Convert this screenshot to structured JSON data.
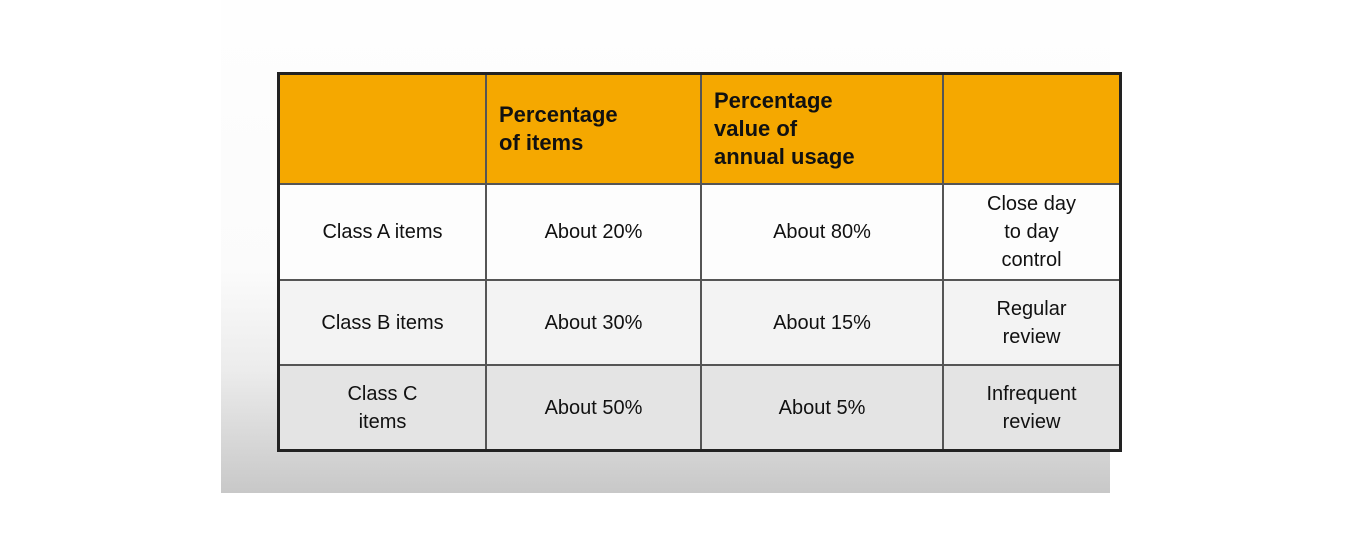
{
  "table": {
    "header": [
      "Percentage of items",
      "Percentage value of annual usage"
    ],
    "rows": [
      [
        "Class A items",
        "About 20%",
        "About 80%",
        "Close day to day control"
      ],
      [
        "Class B items",
        "About 30%",
        "About 15%",
        "Regular review"
      ],
      [
        "Class C items",
        "About 50%",
        "About 5%",
        "Infrequent review"
      ]
    ]
  }
}
